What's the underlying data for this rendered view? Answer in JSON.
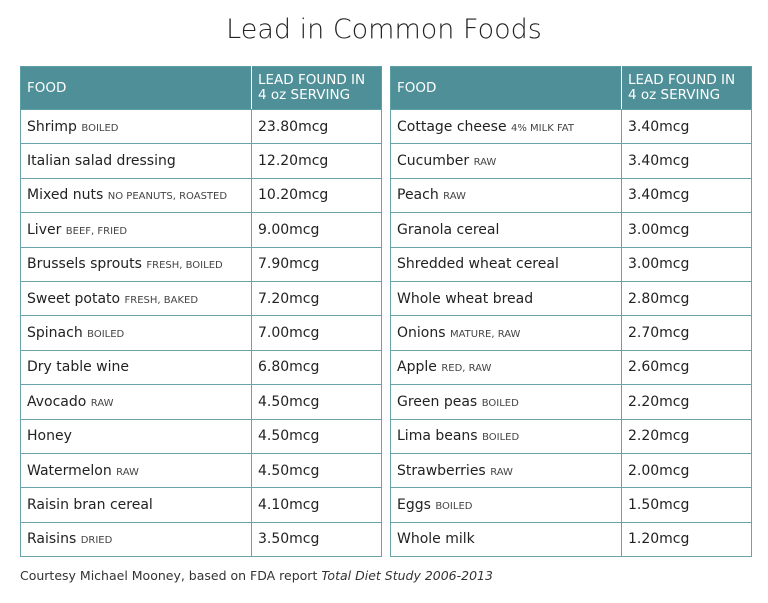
{
  "title": "Lead in Common Foods",
  "tables": [
    {
      "headers": [
        "FOOD",
        "LEAD FOUND IN 4 oz SERVING"
      ],
      "rows": [
        {
          "food": "Shrimp",
          "qualifier": "BOILED",
          "lead": "23.80mcg"
        },
        {
          "food": "Italian salad dressing",
          "lead": "12.20mcg"
        },
        {
          "food": "Mixed nuts",
          "qualifier": "NO PEANUTS, ROASTED",
          "lead": "10.20mcg"
        },
        {
          "food": "Liver",
          "qualifier": "BEEF, FRIED",
          "lead": "9.00mcg"
        },
        {
          "food": "Brussels sprouts",
          "qualifier": "FRESH, BOILED",
          "lead": "7.90mcg"
        },
        {
          "food": "Sweet potato",
          "qualifier": "FRESH, BAKED",
          "lead": "7.20mcg"
        },
        {
          "food": "Spinach",
          "qualifier": "BOILED",
          "lead": "7.00mcg"
        },
        {
          "food": "Dry table wine",
          "lead": "6.80mcg"
        },
        {
          "food": "Avocado",
          "qualifier": "RAW",
          "lead": "4.50mcg"
        },
        {
          "food": "Honey",
          "lead": "4.50mcg"
        },
        {
          "food": "Watermelon",
          "qualifier": "RAW",
          "lead": "4.50mcg"
        },
        {
          "food": "Raisin bran cereal",
          "lead": "4.10mcg"
        },
        {
          "food": "Raisins",
          "qualifier": "DRIED",
          "lead": "3.50mcg"
        }
      ]
    },
    {
      "headers": [
        "FOOD",
        "LEAD FOUND IN 4 oz SERVING"
      ],
      "rows": [
        {
          "food": "Cottage cheese",
          "qualifier": "4% MILK FAT",
          "lead": "3.40mcg"
        },
        {
          "food": "Cucumber",
          "qualifier": "RAW",
          "lead": "3.40mcg"
        },
        {
          "food": "Peach",
          "qualifier": "RAW",
          "lead": "3.40mcg"
        },
        {
          "food": "Granola cereal",
          "lead": "3.00mcg"
        },
        {
          "food": "Shredded wheat cereal",
          "lead": "3.00mcg"
        },
        {
          "food": "Whole wheat bread",
          "lead": "2.80mcg"
        },
        {
          "food": "Onions",
          "qualifier": "MATURE, RAW",
          "lead": "2.70mcg"
        },
        {
          "food": "Apple",
          "qualifier": "RED, RAW",
          "lead": "2.60mcg"
        },
        {
          "food": "Green peas",
          "qualifier": "BOILED",
          "lead": "2.20mcg"
        },
        {
          "food": "Lima beans",
          "qualifier": "BOILED",
          "lead": "2.20mcg"
        },
        {
          "food": "Strawberries",
          "qualifier": "RAW",
          "lead": "2.00mcg"
        },
        {
          "food": "Eggs",
          "qualifier": "BOILED",
          "lead": "1.50mcg"
        },
        {
          "food": "Whole milk",
          "lead": "1.20mcg"
        }
      ]
    }
  ],
  "footer": {
    "text": "Courtesy Michael Mooney, based on FDA report",
    "source": "Total Diet Study 2006-2013"
  }
}
